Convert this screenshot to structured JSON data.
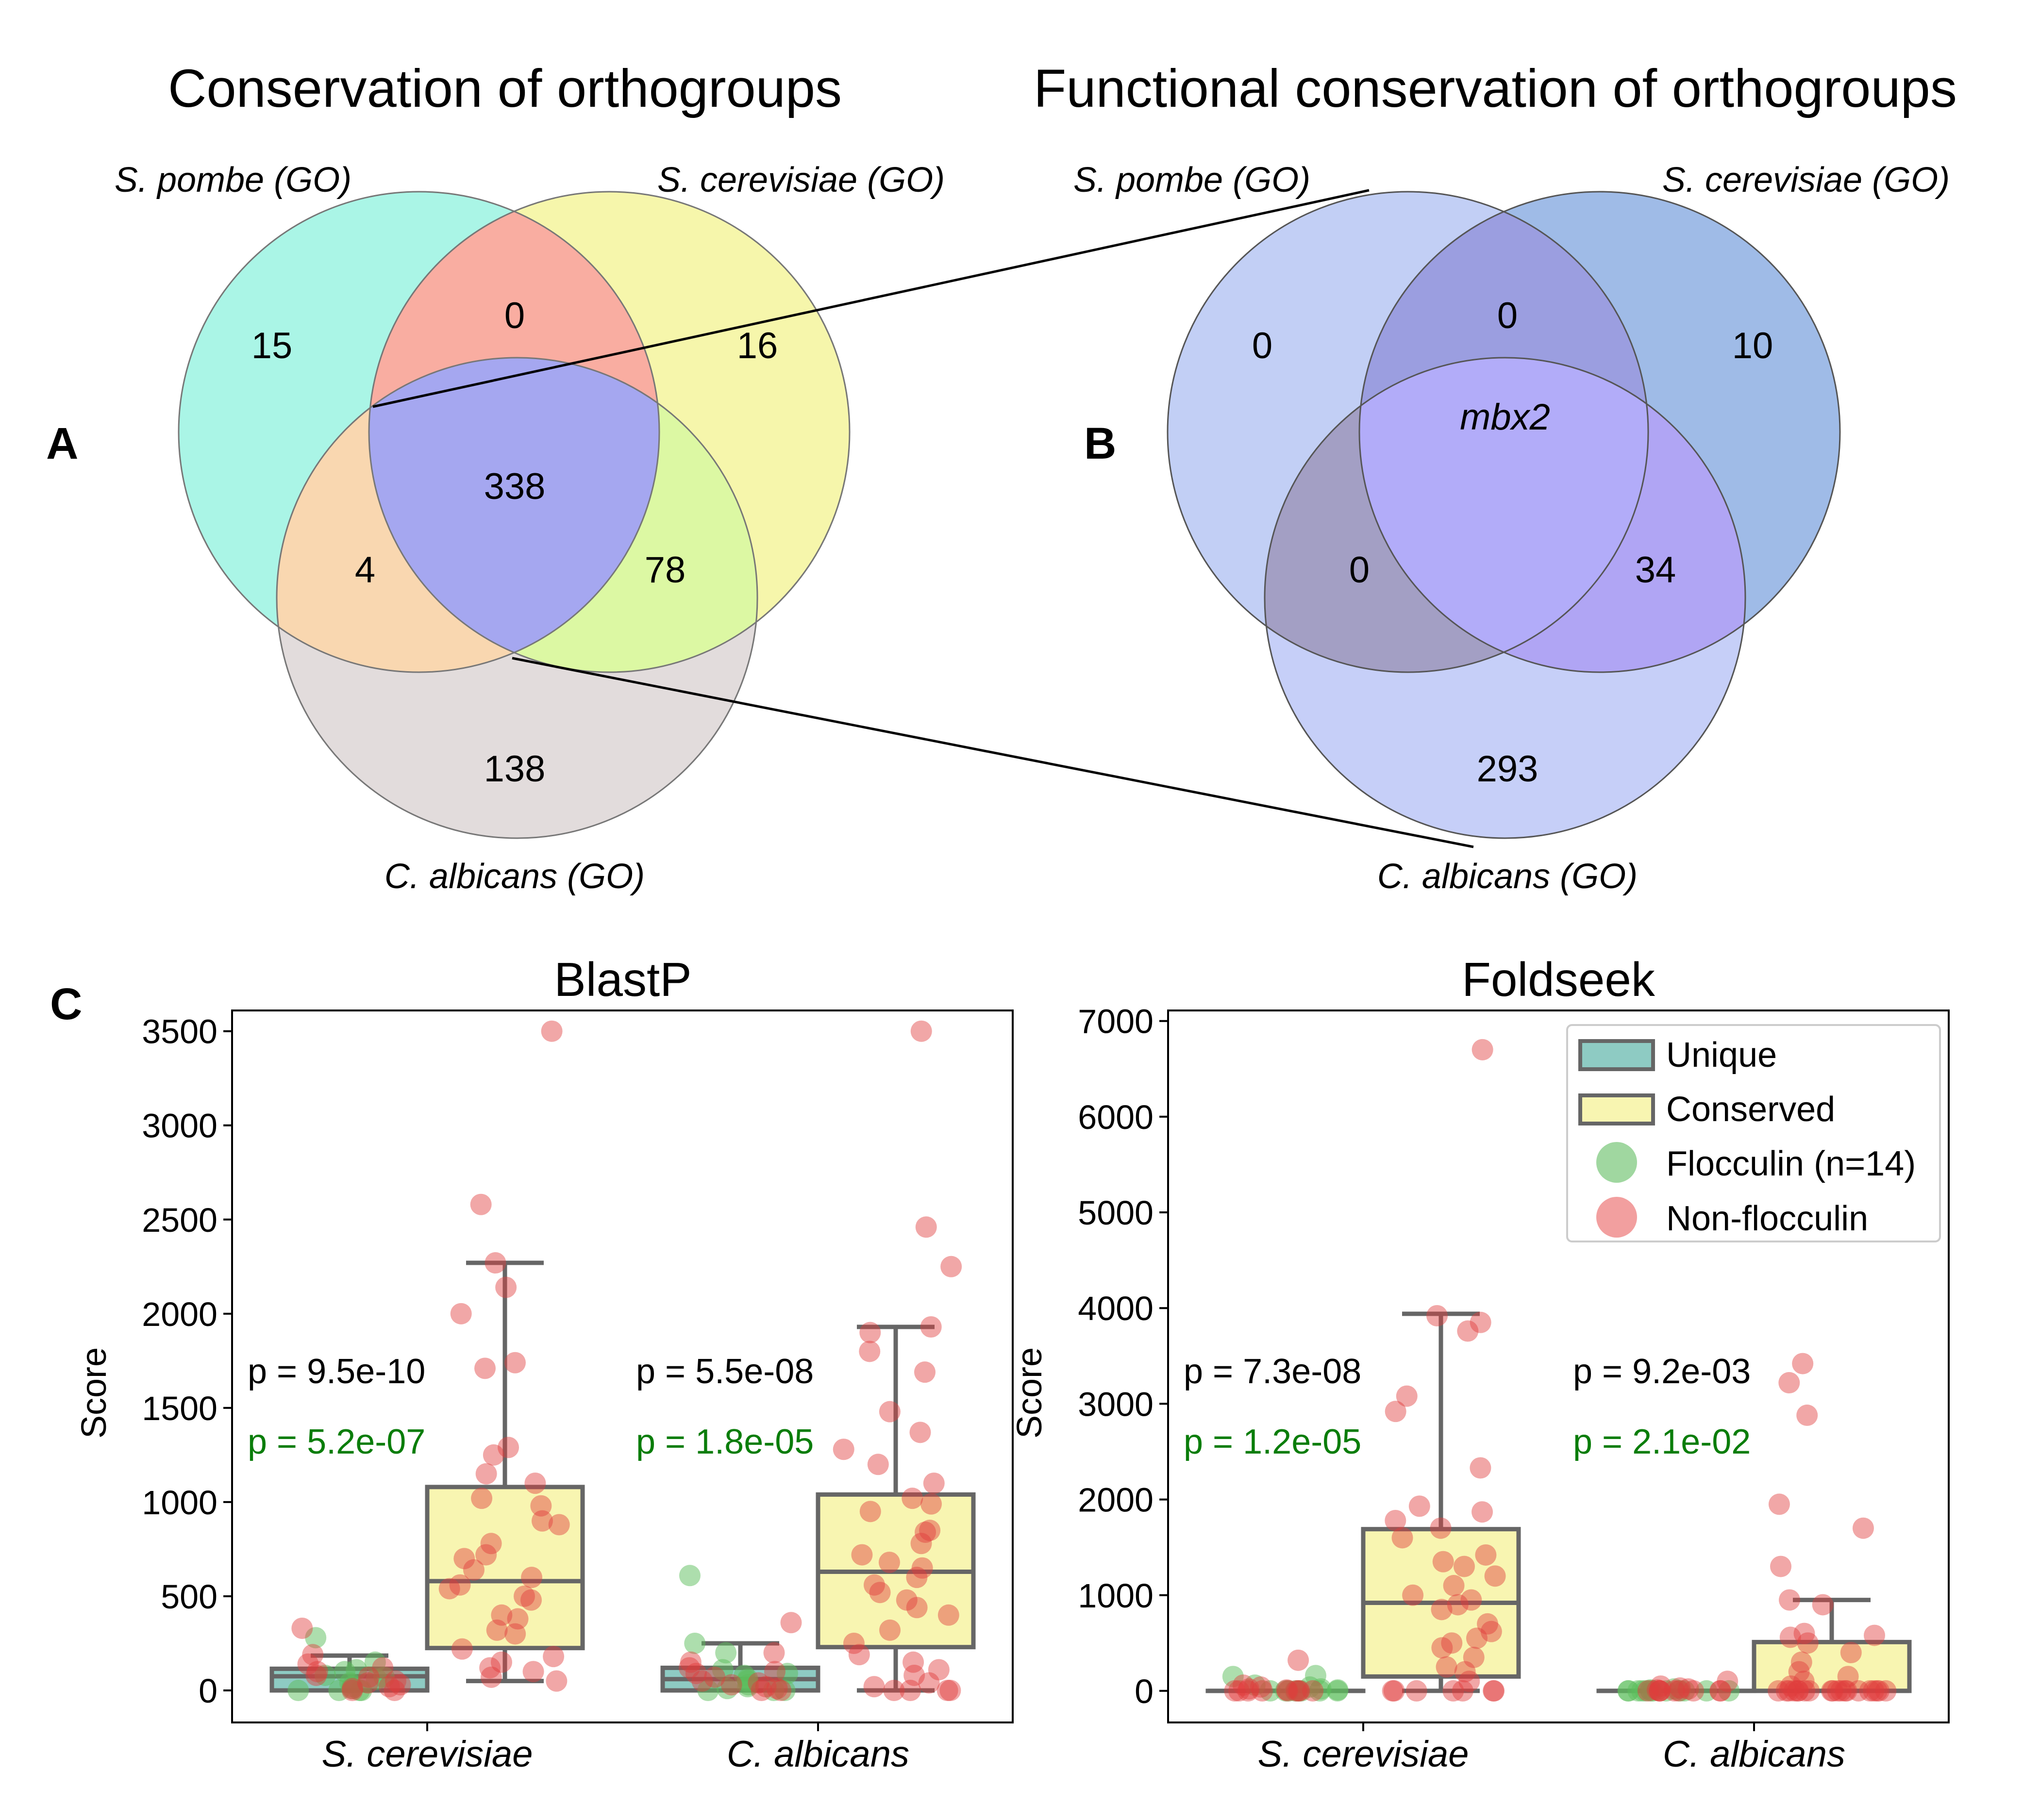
{
  "panel_labels": {
    "a": "A",
    "b": "B",
    "c": "C"
  },
  "venn_a": {
    "title": "Conservation of orthogroups",
    "set_labels": [
      "S. pombe (GO)",
      "S. cerevisiae (GO)",
      "C. albicans (GO)"
    ],
    "region_values": {
      "only_pombe": "15",
      "pombe_cerevisiae": "0",
      "only_cerevisiae": "16",
      "all_three": "338",
      "pombe_albicans": "4",
      "cerevisiae_albicans": "78",
      "only_albicans": "138"
    },
    "colors": {
      "pombe": "#aaf5e6",
      "cerevisiae": "#f6f6ab",
      "albicans": "#e2dcdc",
      "pombe_cerevisiae": "#f9ada1",
      "pombe_albicans": "#f9d7b0",
      "cerevisiae_albicans": "#dcf8a3",
      "all_three": "#a5a7f0"
    }
  },
  "venn_b": {
    "title": "Functional conservation of orthogroups",
    "set_labels": [
      "S. pombe (GO)",
      "S. cerevisiae (GO)",
      "C. albicans (GO)"
    ],
    "region_values": {
      "only_pombe": "0",
      "pombe_cerevisiae": "0",
      "only_cerevisiae": "10",
      "all_three": "mbx2",
      "pombe_albicans": "0",
      "cerevisiae_albicans": "34",
      "only_albicans": "293"
    },
    "colors": {
      "pombe": "#c2cff5",
      "cerevisiae": "#9fbbe7",
      "albicans": "#c6cff8",
      "pombe_cerevisiae": "#9b9ee0",
      "pombe_albicans": "#a39fc4",
      "cerevisiae_albicans": "#b0a5f4",
      "all_three": "#b2acf9"
    }
  },
  "chart_data": [
    {
      "type": "box",
      "title": "BlastP",
      "ylabel": "Score",
      "categories": [
        "S. cerevisiae",
        "C. albicans"
      ],
      "ylim": [
        -170,
        3610
      ],
      "yticks": [
        0,
        500,
        1000,
        1500,
        2000,
        2500,
        3000,
        3500
      ],
      "groups": [
        {
          "category": "S. cerevisiae",
          "unique": {
            "q1": 0,
            "median": 75,
            "q3": 115,
            "whisker_low": 0,
            "whisker_high": 185
          },
          "conserved": {
            "q1": 225,
            "median": 580,
            "q3": 1080,
            "whisker_low": 50,
            "whisker_high": 2270
          },
          "p_blast": "p = 9.5e-10",
          "p_flocculin": "p = 5.2e-07",
          "points_unique": {
            "flocculin": [
              280,
              150,
              110,
              100,
              80,
              70,
              60,
              40,
              20,
              10,
              0,
              0,
              0,
              0
            ],
            "non_flocculin": [
              330,
              190,
              140,
              120,
              100,
              80,
              70,
              50,
              40,
              30,
              20,
              10,
              0,
              0
            ]
          },
          "points_conserved": [
            3500,
            2580,
            2270,
            2140,
            2000,
            1740,
            1710,
            1290,
            1250,
            1150,
            1100,
            1020,
            980,
            900,
            880,
            780,
            720,
            700,
            640,
            600,
            560,
            540,
            500,
            480,
            400,
            380,
            320,
            300,
            220,
            180,
            150,
            120,
            100,
            70,
            50
          ]
        },
        {
          "category": "C. albicans",
          "unique": {
            "q1": 0,
            "median": 60,
            "q3": 120,
            "whisker_low": 0,
            "whisker_high": 250
          },
          "conserved": {
            "q1": 230,
            "median": 630,
            "q3": 1040,
            "whisker_low": 0,
            "whisker_high": 1930
          },
          "p_blast": "p = 5.5e-08",
          "p_flocculin": "p = 1.8e-05",
          "points_unique": {
            "flocculin": [
              610,
              250,
              200,
              110,
              90,
              80,
              60,
              50,
              30,
              20,
              10,
              0,
              0,
              0
            ],
            "non_flocculin": [
              360,
              200,
              150,
              120,
              100,
              90,
              70,
              50,
              40,
              30,
              20,
              10,
              0,
              0
            ]
          },
          "points_conserved": [
            3500,
            2460,
            2250,
            1930,
            1900,
            1800,
            1690,
            1480,
            1370,
            1280,
            1200,
            1100,
            1020,
            990,
            950,
            850,
            840,
            780,
            720,
            680,
            650,
            600,
            560,
            520,
            480,
            440,
            400,
            320,
            250,
            190,
            150,
            110,
            80,
            40,
            20,
            0,
            0,
            0,
            0
          ]
        }
      ]
    },
    {
      "type": "box",
      "title": "Foldseek",
      "ylabel": "Score",
      "categories": [
        "S. cerevisiae",
        "C. albicans"
      ],
      "ylim": [
        -330,
        7110
      ],
      "yticks": [
        0,
        1000,
        2000,
        3000,
        4000,
        5000,
        6000,
        7000
      ],
      "groups": [
        {
          "category": "S. cerevisiae",
          "unique": {
            "q1": 0,
            "median": 0,
            "q3": 0,
            "whisker_low": 0,
            "whisker_high": 0
          },
          "conserved": {
            "q1": 150,
            "median": 920,
            "q3": 1690,
            "whisker_low": 0,
            "whisker_high": 3940
          },
          "p_blast": "p = 7.3e-08",
          "p_flocculin": "p = 1.2e-05",
          "points_unique": {
            "flocculin": [
              160,
              150,
              60,
              40,
              20,
              10,
              0,
              0,
              0,
              0,
              0,
              0,
              0,
              0
            ],
            "non_flocculin": [
              320,
              60,
              40,
              20,
              10,
              0,
              0,
              0,
              0,
              0,
              0,
              0,
              0,
              0
            ]
          },
          "points_conserved": [
            6700,
            3920,
            3850,
            3760,
            3080,
            2920,
            2330,
            1930,
            1870,
            1780,
            1700,
            1600,
            1420,
            1350,
            1300,
            1200,
            1100,
            1000,
            950,
            900,
            850,
            700,
            620,
            550,
            500,
            450,
            350,
            250,
            200,
            100,
            0,
            0,
            0,
            0,
            0,
            0,
            0
          ]
        },
        {
          "category": "C. albicans",
          "unique": {
            "q1": 0,
            "median": 0,
            "q3": 0,
            "whisker_low": 0,
            "whisker_high": 0
          },
          "conserved": {
            "q1": 0,
            "median": 0,
            "q3": 510,
            "whisker_low": 0,
            "whisker_high": 950
          },
          "p_blast": "p = 9.2e-03",
          "p_flocculin": "p = 2.1e-02",
          "points_unique": {
            "flocculin": [
              20,
              10,
              0,
              0,
              0,
              0,
              0,
              0,
              0,
              0,
              0,
              0,
              0,
              0
            ],
            "non_flocculin": [
              100,
              50,
              30,
              20,
              10,
              0,
              0,
              0,
              0,
              0,
              0,
              0,
              0,
              0
            ]
          },
          "points_conserved": [
            3420,
            3220,
            2880,
            1950,
            1700,
            1300,
            950,
            900,
            600,
            580,
            560,
            500,
            400,
            300,
            200,
            150,
            100,
            50,
            0,
            0,
            0,
            0,
            0,
            0,
            0,
            0,
            0,
            0,
            0,
            0,
            0,
            0,
            0,
            0,
            0,
            0,
            0,
            0
          ]
        }
      ]
    }
  ],
  "legend": {
    "items": [
      {
        "label": "Unique",
        "kind": "box",
        "fill": "#8ecbc3",
        "stroke": "#666666"
      },
      {
        "label": "Conserved",
        "kind": "box",
        "fill": "#f8f5b1",
        "stroke": "#666666"
      },
      {
        "label": "Flocculin (n=14)",
        "kind": "dot",
        "fill": "#8fd08f"
      },
      {
        "label": "Non-flocculin",
        "kind": "dot",
        "fill": "#f08e8e"
      }
    ]
  },
  "colors": {
    "unique_box": "#8ecbc3",
    "conserved_box": "#f8f5b1",
    "box_stroke": "#666666",
    "flocculin": "#5cbd5c",
    "non_flocculin": "#e03c3c",
    "p_green": "#0a7d0a"
  }
}
